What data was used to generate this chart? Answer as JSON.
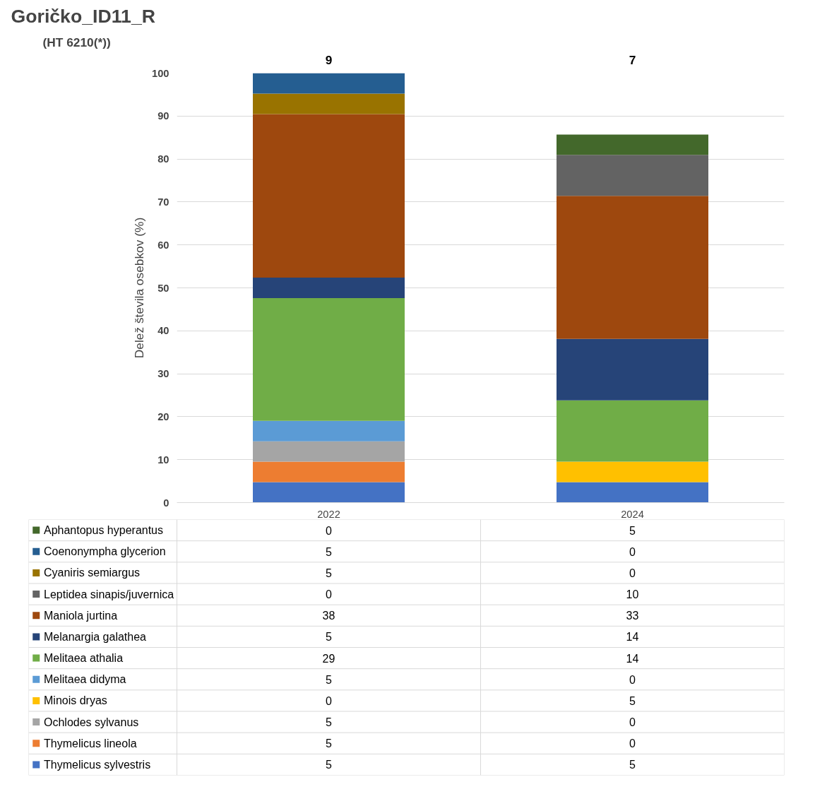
{
  "chart_data": {
    "type": "bar",
    "stacked": true,
    "title": "Goričko_ID11_R",
    "subtitle": "(HT 6210(*))",
    "ylabel": "Delež števila osebkov (%)",
    "categories": [
      "2022",
      "2024"
    ],
    "ylim": [
      0,
      100
    ],
    "yticks": [
      0,
      10,
      20,
      30,
      40,
      50,
      60,
      70,
      80,
      90,
      100
    ],
    "grid": "y",
    "legend": "bottom",
    "annotations": [
      "9",
      "7"
    ],
    "series": [
      {
        "name": "Thymelicus sylvestris",
        "color": "#4472c4",
        "values": [
          4.76,
          4.76
        ],
        "value_labels": [
          "5",
          "5"
        ]
      },
      {
        "name": "Thymelicus lineola",
        "color": "#ed7d31",
        "values": [
          4.76,
          0
        ],
        "value_labels": [
          "5",
          "0"
        ]
      },
      {
        "name": "Ochlodes sylvanus",
        "color": "#a5a5a5",
        "values": [
          4.76,
          0
        ],
        "value_labels": [
          "5",
          "0"
        ]
      },
      {
        "name": "Minois dryas",
        "color": "#ffc000",
        "values": [
          0,
          4.76
        ],
        "value_labels": [
          "0",
          "5"
        ]
      },
      {
        "name": "Melitaea didyma",
        "color": "#5b9bd5",
        "values": [
          4.76,
          0
        ],
        "value_labels": [
          "5",
          "0"
        ]
      },
      {
        "name": "Melitaea athalia",
        "color": "#70ad47",
        "values": [
          28.57,
          14.29
        ],
        "value_labels": [
          "29",
          "14"
        ]
      },
      {
        "name": "Melanargia galathea",
        "color": "#264478",
        "values": [
          4.76,
          14.29
        ],
        "value_labels": [
          "5",
          "14"
        ]
      },
      {
        "name": "Maniola jurtina",
        "color": "#9e480e",
        "values": [
          38.1,
          33.33
        ],
        "value_labels": [
          "38",
          "33"
        ]
      },
      {
        "name": "Leptidea sinapis/juvernica",
        "color": "#636363",
        "values": [
          0,
          9.52
        ],
        "value_labels": [
          "0",
          "10"
        ]
      },
      {
        "name": "Cyaniris semiargus",
        "color": "#997300",
        "values": [
          4.76,
          0
        ],
        "value_labels": [
          "5",
          "0"
        ]
      },
      {
        "name": "Coenonympha glycerion",
        "color": "#255e91",
        "values": [
          4.76,
          0
        ],
        "value_labels": [
          "5",
          "0"
        ]
      },
      {
        "name": "Aphantopus hyperantus",
        "color": "#43682b",
        "values": [
          0,
          4.76
        ],
        "value_labels": [
          "0",
          "5"
        ]
      }
    ]
  }
}
